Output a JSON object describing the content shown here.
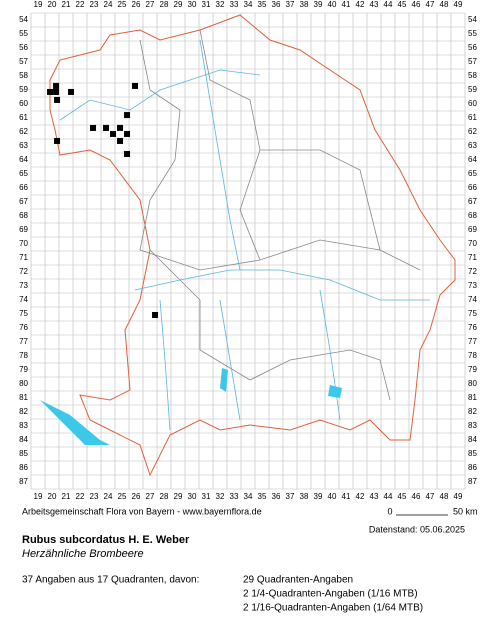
{
  "grid": {
    "columns": [
      19,
      20,
      21,
      22,
      23,
      24,
      25,
      26,
      27,
      28,
      29,
      30,
      31,
      32,
      33,
      34,
      35,
      36,
      37,
      38,
      39,
      40,
      41,
      42,
      43,
      44,
      45,
      46,
      47,
      48,
      49
    ],
    "rows": [
      54,
      55,
      56,
      57,
      58,
      59,
      60,
      61,
      62,
      63,
      64,
      65,
      66,
      67,
      68,
      69,
      70,
      71,
      72,
      73,
      74,
      75,
      76,
      77,
      78,
      79,
      80,
      81,
      82,
      83,
      84,
      85,
      86,
      87
    ]
  },
  "records": [
    {
      "x": 19.86,
      "y": 59.14
    },
    {
      "x": 20.29,
      "y": 58.71
    },
    {
      "x": 20.29,
      "y": 59.14
    },
    {
      "x": 20.36,
      "y": 59.71
    },
    {
      "x": 21.36,
      "y": 59.14
    },
    {
      "x": 25.93,
      "y": 58.71
    },
    {
      "x": 25.36,
      "y": 60.79
    },
    {
      "x": 22.93,
      "y": 61.71
    },
    {
      "x": 23.86,
      "y": 61.71
    },
    {
      "x": 24.86,
      "y": 61.71
    },
    {
      "x": 24.36,
      "y": 62.14
    },
    {
      "x": 25.36,
      "y": 62.14
    },
    {
      "x": 20.36,
      "y": 62.64
    },
    {
      "x": 24.86,
      "y": 62.64
    },
    {
      "x": 25.36,
      "y": 63.57
    },
    {
      "x": 27.36,
      "y": 75.07
    }
  ],
  "credit": "Arbeitsgemeinschaft Flora von Bayern - www.bayernflora.de",
  "scale": {
    "start": "0",
    "end": "50 km"
  },
  "date": "Datenstand: 05.06.2025",
  "title": "Rubus subcordatus H. E. Weber",
  "subtitle": "Herzähnliche Brombeere",
  "summary": "37 Angaben aus 17 Quadranten, davon:",
  "details": [
    "29 Quadranten-Angaben",
    "2 1/4-Quadranten-Angaben (1/16 MTB)",
    "2 1/16-Quadranten-Angaben (1/64 MTB)"
  ]
}
